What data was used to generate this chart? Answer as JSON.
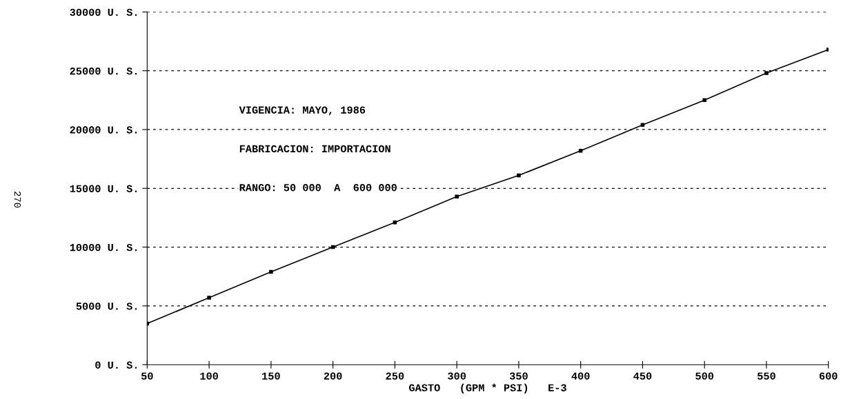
{
  "chart_data": {
    "type": "line",
    "xlabel": "GASTO   (GPM * PSI)   E-3",
    "x": [
      50,
      100,
      150,
      200,
      250,
      300,
      350,
      400,
      450,
      500,
      550,
      600
    ],
    "series": [
      {
        "color": "#000000",
        "values": [
          3500,
          5700,
          7900,
          10000,
          12100,
          14300,
          16100,
          18200,
          20400,
          22500,
          24800,
          26800
        ]
      }
    ],
    "xlim": [
      50,
      600
    ],
    "xticks": [
      50,
      100,
      150,
      200,
      250,
      300,
      350,
      400,
      450,
      500,
      550,
      600
    ],
    "ylim": [
      0,
      30000
    ],
    "yticks": [
      {
        "value": 0,
        "label": "0 U. S."
      },
      {
        "value": 5000,
        "label": "5000 U. S."
      },
      {
        "value": 10000,
        "label": "10000 U. S."
      },
      {
        "value": 15000,
        "label": "15000 U. S."
      },
      {
        "value": 20000,
        "label": "20000 U. S."
      },
      {
        "value": 25000,
        "label": "25000 U. S."
      },
      {
        "value": 30000,
        "label": "30000 U. S."
      }
    ],
    "grid": "y",
    "marker": "square",
    "line_style": "solid",
    "annotations": [
      "VIGENCIA: MAYO, 1986",
      "FABRICACION: IMPORTACION",
      "RANGO: 50 000  A  600 000",
      "270"
    ]
  }
}
